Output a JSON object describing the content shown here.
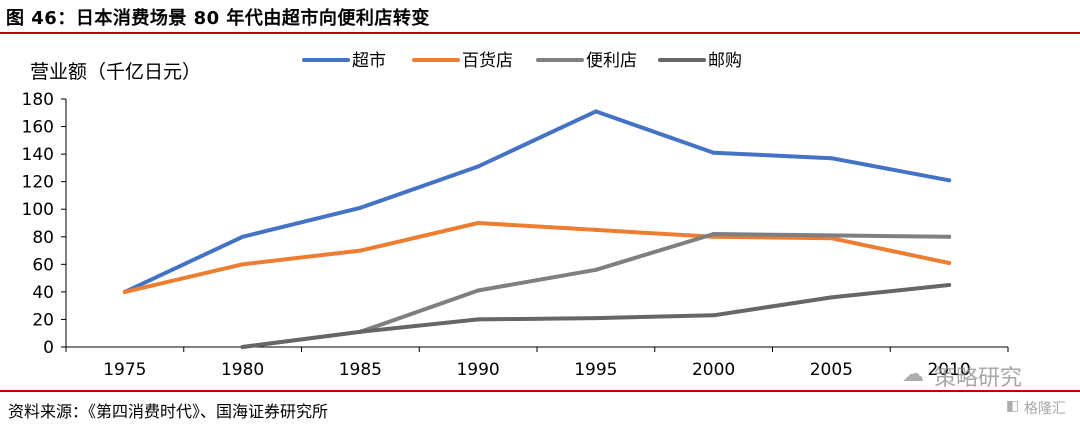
{
  "header": {
    "title": "图 46：日本消费场景 80 年代由超市向便利店转变"
  },
  "footer": {
    "source": "资料来源：《第四消费时代》、国海证券研究所"
  },
  "watermarks": {
    "wechat": "策略研究",
    "gelonghui": "格隆汇"
  },
  "chart_data": {
    "type": "line",
    "title": "",
    "xlabel": "",
    "ylabel": "营业额（千亿日元）",
    "categories": [
      "1975",
      "1980",
      "1985",
      "1990",
      "1995",
      "2000",
      "2005",
      "2010"
    ],
    "ylim": [
      0,
      180
    ],
    "yticks": [
      0,
      20,
      40,
      60,
      80,
      100,
      120,
      140,
      160,
      180
    ],
    "grid": false,
    "legend_position": "top",
    "series": [
      {
        "name": "超市",
        "color": "#4472c4",
        "values": [
          40,
          80,
          101,
          131,
          171,
          141,
          137,
          121
        ]
      },
      {
        "name": "百货店",
        "color": "#ed7d31",
        "values": [
          40,
          60,
          70,
          90,
          85,
          80,
          79,
          61
        ]
      },
      {
        "name": "便利店",
        "color": "#7f7f7f",
        "values": [
          null,
          0,
          11,
          41,
          56,
          82,
          81,
          80
        ]
      },
      {
        "name": "邮购",
        "color": "#666666",
        "values": [
          null,
          0,
          11,
          20,
          21,
          23,
          36,
          45
        ]
      }
    ]
  }
}
